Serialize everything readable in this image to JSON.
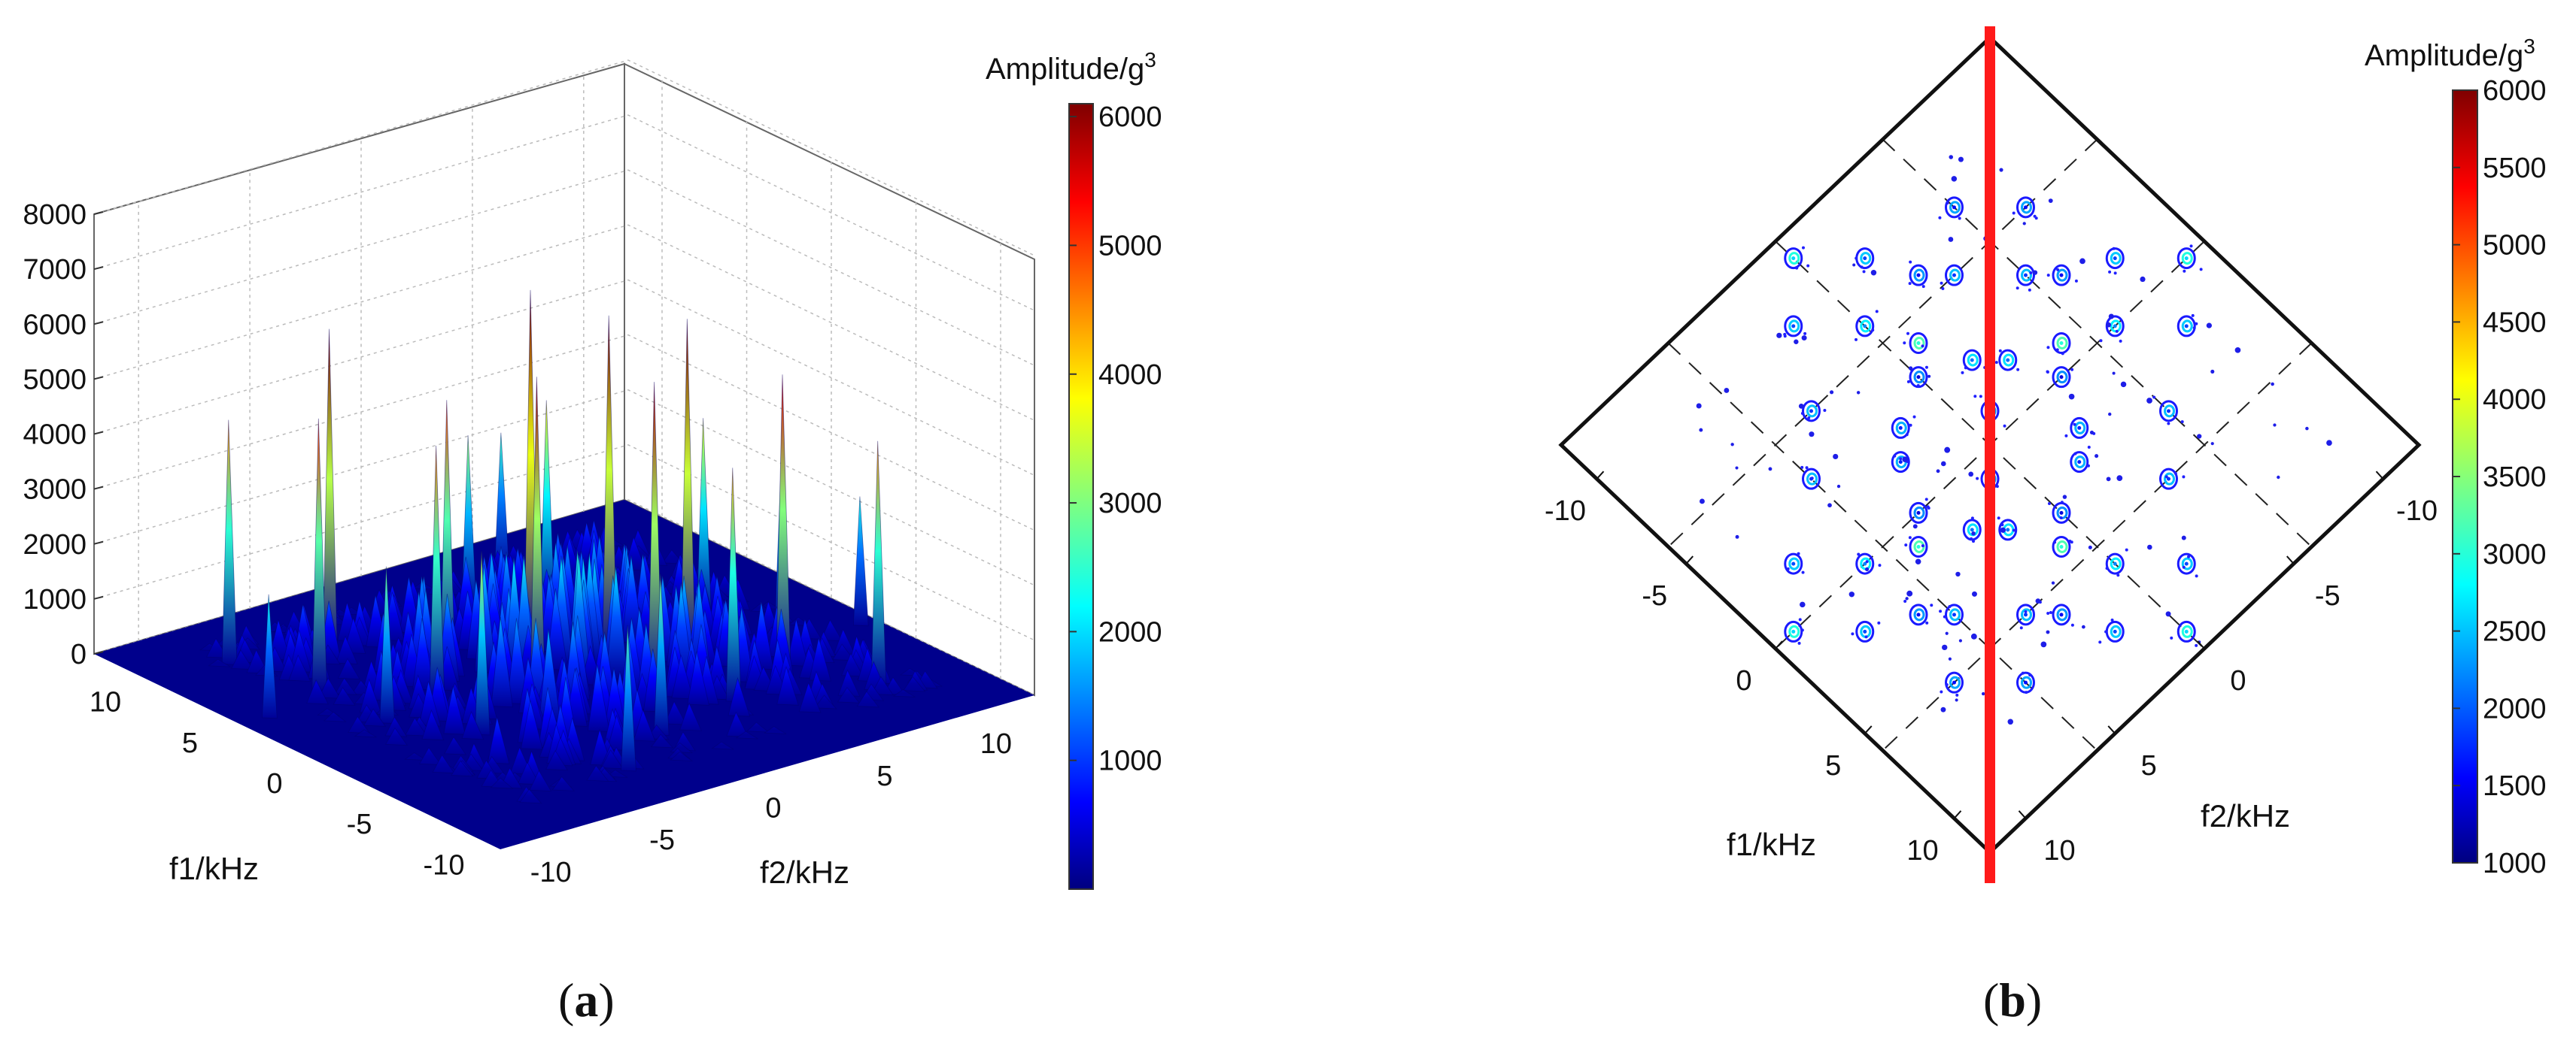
{
  "chart_data": [
    {
      "type": "3d-surface",
      "caption_open": "(",
      "caption_letter": "a",
      "caption_close": ")",
      "zlabel_tick_values": [
        0,
        1000,
        2000,
        3000,
        4000,
        5000,
        6000,
        7000,
        8000
      ],
      "zlim": [
        0,
        8000
      ],
      "x_axis": {
        "label": "f1/kHz",
        "ticks": [
          10,
          5,
          0,
          -5,
          -10
        ]
      },
      "y_axis": {
        "label": "f2/kHz",
        "ticks": [
          -10,
          -5,
          0,
          5,
          10
        ]
      },
      "colorbar": {
        "title": "Amplitude/g",
        "title_superscript": "3",
        "ticks": [
          1000,
          2000,
          3000,
          4000,
          5000,
          6000
        ],
        "range": [
          0,
          6100
        ],
        "colormap": "jet"
      },
      "peaks": [
        {
          "f1": 8,
          "f2": -9,
          "amp": 4500
        },
        {
          "f1": 6,
          "f2": -6,
          "amp": 6100
        },
        {
          "f1": 4,
          "f2": -8,
          "amp": 5000
        },
        {
          "f1": 3,
          "f2": -3,
          "amp": 4900
        },
        {
          "f1": 2,
          "f2": 0,
          "amp": 6700
        },
        {
          "f1": 1,
          "f2": -5,
          "amp": 4600
        },
        {
          "f1": 0,
          "f2": 2,
          "amp": 6300
        },
        {
          "f1": -1,
          "f2": -2,
          "amp": 5800
        },
        {
          "f1": -2,
          "f2": 4,
          "amp": 6300
        },
        {
          "f1": -4,
          "f2": 1,
          "amp": 5800
        },
        {
          "f1": -5,
          "f2": 6,
          "amp": 5500
        },
        {
          "f1": -6,
          "f2": 3,
          "amp": 4300
        },
        {
          "f1": -8,
          "f2": 8,
          "amp": 4500
        },
        {
          "f1": 5,
          "f2": 3,
          "amp": 3900
        },
        {
          "f1": -3,
          "f2": -6,
          "amp": 3400
        },
        {
          "f1": 7,
          "f2": 1,
          "amp": 3200
        },
        {
          "f1": -7,
          "f2": -1,
          "amp": 3000
        },
        {
          "f1": 1,
          "f2": 7,
          "amp": 3700
        },
        {
          "f1": -1,
          "f2": 9,
          "amp": 3100
        },
        {
          "f1": 9,
          "f2": 4,
          "amp": 2600
        },
        {
          "f1": -9,
          "f2": -4,
          "amp": 2700
        },
        {
          "f1": 3,
          "f2": -11,
          "amp": 2300
        },
        {
          "f1": -3,
          "f2": 11,
          "amp": 2400
        },
        {
          "f1": 0,
          "f2": -8,
          "amp": 2900
        }
      ]
    },
    {
      "type": "contour",
      "caption_open": "(",
      "caption_letter": "b",
      "caption_close": ")",
      "x_axis": {
        "label": "f1/kHz",
        "ticks": [
          -10,
          -5,
          0,
          5,
          10
        ]
      },
      "y_axis": {
        "label": "f2/kHz",
        "ticks": [
          10,
          5,
          0,
          -5,
          -10
        ]
      },
      "range": [
        -12,
        12
      ],
      "colorbar": {
        "title": "Amplitude/g",
        "title_superscript": "3",
        "ticks": [
          1000,
          1500,
          2000,
          2500,
          3000,
          3500,
          4000,
          4500,
          5000,
          5500,
          6000
        ],
        "range": [
          1000,
          6000
        ],
        "colormap": "jet"
      },
      "symmetry_line": {
        "f1_equals_f2": true,
        "color": "#ff1a1a"
      },
      "grid": "dashed",
      "blobs": [
        {
          "f1": 11,
          "f2": 0,
          "amp": 2600
        },
        {
          "f1": -11,
          "f2": 0,
          "amp": 2600
        },
        {
          "f1": 0,
          "f2": 11,
          "amp": 2600
        },
        {
          "f1": 0,
          "f2": -11,
          "amp": 2600
        },
        {
          "f1": 9,
          "f2": 2,
          "amp": 1900
        },
        {
          "f1": 9,
          "f2": -2,
          "amp": 1900
        },
        {
          "f1": -9,
          "f2": 2,
          "amp": 1900
        },
        {
          "f1": -9,
          "f2": -2,
          "amp": 1900
        },
        {
          "f1": 2,
          "f2": 9,
          "amp": 1900
        },
        {
          "f1": -2,
          "f2": 9,
          "amp": 1900
        },
        {
          "f1": 2,
          "f2": -9,
          "amp": 1900
        },
        {
          "f1": -2,
          "f2": -9,
          "amp": 1900
        },
        {
          "f1": 7,
          "f2": 0,
          "amp": 2200
        },
        {
          "f1": -7,
          "f2": 0,
          "amp": 2200
        },
        {
          "f1": 0,
          "f2": 7,
          "amp": 2200
        },
        {
          "f1": 0,
          "f2": -7,
          "amp": 2200
        },
        {
          "f1": 6,
          "f2": 4,
          "amp": 1800
        },
        {
          "f1": 6,
          "f2": -4,
          "amp": 1800
        },
        {
          "f1": -6,
          "f2": 4,
          "amp": 1800
        },
        {
          "f1": -6,
          "f2": -4,
          "amp": 1800
        },
        {
          "f1": 4,
          "f2": 6,
          "amp": 1800
        },
        {
          "f1": -4,
          "f2": 6,
          "amp": 1800
        },
        {
          "f1": 4,
          "f2": -6,
          "amp": 1800
        },
        {
          "f1": -4,
          "f2": -6,
          "amp": 1800
        },
        {
          "f1": 5,
          "f2": 1,
          "amp": 3000
        },
        {
          "f1": -5,
          "f2": -1,
          "amp": 3000
        },
        {
          "f1": 1,
          "f2": 5,
          "amp": 3000
        },
        {
          "f1": -1,
          "f2": -5,
          "amp": 3000
        },
        {
          "f1": 3,
          "f2": 2,
          "amp": 2100
        },
        {
          "f1": -3,
          "f2": -2,
          "amp": 2100
        },
        {
          "f1": 2,
          "f2": 3,
          "amp": 2100
        },
        {
          "f1": -2,
          "f2": -3,
          "amp": 2100
        },
        {
          "f1": 3,
          "f2": -2,
          "amp": 1700
        },
        {
          "f1": -3,
          "f2": 2,
          "amp": 1700
        },
        {
          "f1": 2,
          "f2": -3,
          "amp": 1700
        },
        {
          "f1": -2,
          "f2": 3,
          "amp": 1700
        },
        {
          "f1": 8,
          "f2": 6,
          "amp": 1600
        },
        {
          "f1": -8,
          "f2": -6,
          "amp": 1600
        },
        {
          "f1": 6,
          "f2": 8,
          "amp": 1600
        },
        {
          "f1": -6,
          "f2": -8,
          "amp": 1600
        },
        {
          "f1": 1,
          "f2": 1,
          "amp": 1500
        },
        {
          "f1": -1,
          "f2": -1,
          "amp": 1500
        },
        {
          "f1": 7,
          "f2": 3,
          "amp": 1500
        },
        {
          "f1": -7,
          "f2": -3,
          "amp": 1500
        },
        {
          "f1": 3,
          "f2": 7,
          "amp": 1500
        },
        {
          "f1": -3,
          "f2": -7,
          "amp": 1500
        },
        {
          "f1": 4,
          "f2": 0,
          "amp": 1400
        },
        {
          "f1": -4,
          "f2": 0,
          "amp": 1400
        },
        {
          "f1": 0,
          "f2": 4,
          "amp": 1400
        },
        {
          "f1": 0,
          "f2": -4,
          "amp": 1400
        }
      ]
    }
  ]
}
